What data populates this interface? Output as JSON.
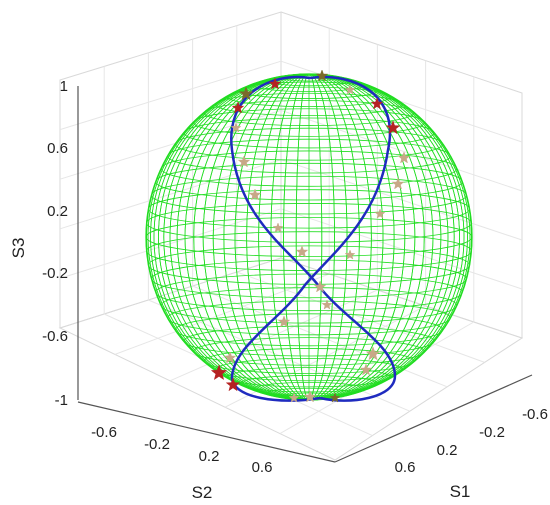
{
  "chart_data": {
    "type": "scatter",
    "title": "",
    "xlabel": "S1",
    "ylabel": "S2",
    "zlabel": "S3",
    "xlim": [
      -1,
      1
    ],
    "ylim": [
      -1,
      1
    ],
    "zlim": [
      -1,
      1
    ],
    "grid": true,
    "view": "3d-box",
    "x_ticks": [
      "-0.6",
      "-0.2",
      "0.2",
      "0.6"
    ],
    "y_ticks": [
      "-0.6",
      "-0.2",
      "0.2",
      "0.6"
    ],
    "z_ticks": [
      "1",
      "0.6",
      "0.2",
      "-0.2",
      "-0.6",
      "-1"
    ],
    "sphere": {
      "color": "#22dd22",
      "style": "wireframe",
      "radius": 1
    },
    "curve": {
      "color": "#1f2bbf",
      "shape": "figure-eight",
      "points": [
        {
          "s1": 0.0,
          "s2": 0.0,
          "s3": 1.0
        },
        {
          "s1": 0.3,
          "s2": 0.55,
          "s3": 0.55
        },
        {
          "s1": 0.0,
          "s2": 0.0,
          "s3": 0.0
        },
        {
          "s1": -0.3,
          "s2": -0.55,
          "s3": -0.55
        },
        {
          "s1": 0.0,
          "s2": 0.0,
          "s3": -1.0
        }
      ]
    },
    "colors": {
      "star_red": "#b52222",
      "star_olive": "#7a6a2a",
      "star_light": "#c8a888"
    }
  }
}
